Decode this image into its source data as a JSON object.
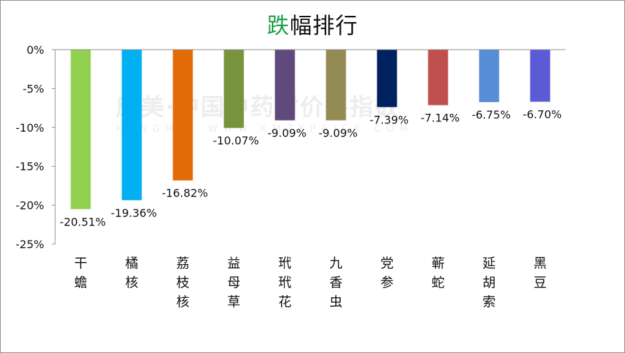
{
  "chart_data": {
    "type": "bar",
    "title_highlight": "跌",
    "title_rest": "幅排行",
    "categories": [
      "干蟾",
      "橘核",
      "荔枝核",
      "益母草",
      "玳玳花",
      "九香虫",
      "党参",
      "蕲蛇",
      "延胡索",
      "黑豆"
    ],
    "values": [
      -20.51,
      -19.36,
      -16.82,
      -10.07,
      -9.09,
      -9.09,
      -7.39,
      -7.14,
      -6.75,
      -6.7
    ],
    "value_labels": [
      "-20.51%",
      "-19.36%",
      "-16.82%",
      "-10.07%",
      "-9.09%",
      "-9.09%",
      "-7.39%",
      "-7.14%",
      "-6.75%",
      "-6.70%"
    ],
    "colors": [
      "#92d050",
      "#00b0f0",
      "#e36c09",
      "#77933c",
      "#604a7b",
      "#948a54",
      "#002060",
      "#c0504d",
      "#558ed5",
      "#5b5bd6"
    ],
    "title_color": "#1fa04a",
    "ylim": [
      -25,
      0
    ],
    "yticks": [
      0,
      -5,
      -10,
      -15,
      -20,
      -25
    ],
    "ytick_labels": [
      "0%",
      "-5%",
      "-10%",
      "-15%",
      "-20%",
      "-25%"
    ],
    "xlabel": "",
    "ylabel": "",
    "grid": false,
    "legend": "none"
  },
  "watermark": {
    "line1": "康美·中国中药材价格指数",
    "line2": "KANGMEI WWW.KMZYPRICE.COM"
  }
}
